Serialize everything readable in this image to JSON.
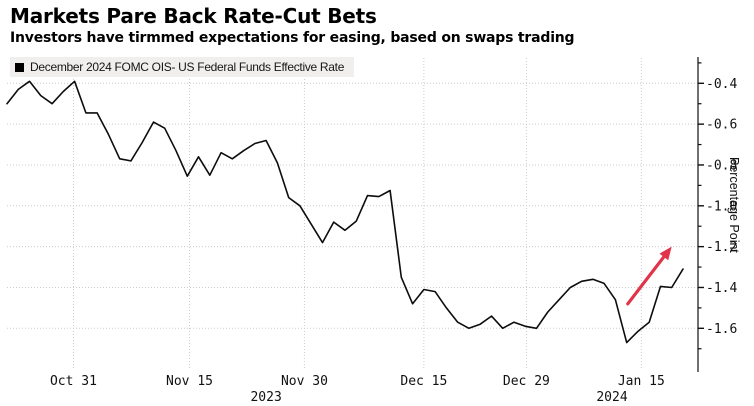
{
  "header": {
    "title": "Markets Pare Back Rate-Cut Bets",
    "subtitle": "Investors have tirmmed expectations for easing, based on swaps trading"
  },
  "legend": {
    "label": "December 2024 FOMC OIS- US Federal Funds Effective Rate",
    "swatch_color": "#000000"
  },
  "colors": {
    "line": "#0d0d0d",
    "grid": "#cccccc",
    "axis": "#111111",
    "tick_text": "#111111",
    "arrow": "#e13349",
    "legend_bg": "#f0efed"
  },
  "chart_data": {
    "type": "line",
    "title": "Markets Pare Back Rate-Cut Bets",
    "subtitle": "Investors have tirmmed expectations for easing, based on swaps trading",
    "grid": true,
    "legend_position": "top-left",
    "series": [
      {
        "name": "December 2024 FOMC OIS- US Federal Funds Effective Rate",
        "color": "#0d0d0d",
        "points": [
          [
            "2023-10-23",
            -0.5
          ],
          [
            "2023-10-24",
            -0.43
          ],
          [
            "2023-10-25",
            -0.39
          ],
          [
            "2023-10-26",
            -0.46
          ],
          [
            "2023-10-27",
            -0.5
          ],
          [
            "2023-10-30",
            -0.44
          ],
          [
            "2023-10-31",
            -0.39
          ],
          [
            "2023-11-01",
            -0.545
          ],
          [
            "2023-11-02",
            -0.545
          ],
          [
            "2023-11-03",
            -0.65
          ],
          [
            "2023-11-06",
            -0.77
          ],
          [
            "2023-11-07",
            -0.78
          ],
          [
            "2023-11-08",
            -0.69
          ],
          [
            "2023-11-09",
            -0.59
          ],
          [
            "2023-11-10",
            -0.62
          ],
          [
            "2023-11-13",
            -0.73
          ],
          [
            "2023-11-14",
            -0.855
          ],
          [
            "2023-11-15",
            -0.76
          ],
          [
            "2023-11-16",
            -0.85
          ],
          [
            "2023-11-17",
            -0.74
          ],
          [
            "2023-11-20",
            -0.77
          ],
          [
            "2023-11-21",
            -0.73
          ],
          [
            "2023-11-22",
            -0.695
          ],
          [
            "2023-11-24",
            -0.68
          ],
          [
            "2023-11-27",
            -0.79
          ],
          [
            "2023-11-28",
            -0.96
          ],
          [
            "2023-11-29",
            -1.0
          ],
          [
            "2023-11-30",
            -1.09
          ],
          [
            "2023-12-01",
            -1.18
          ],
          [
            "2023-12-04",
            -1.08
          ],
          [
            "2023-12-05",
            -1.12
          ],
          [
            "2023-12-06",
            -1.075
          ],
          [
            "2023-12-07",
            -0.95
          ],
          [
            "2023-12-08",
            -0.955
          ],
          [
            "2023-12-11",
            -0.925
          ],
          [
            "2023-12-12",
            -1.35
          ],
          [
            "2023-12-13",
            -1.48
          ],
          [
            "2023-12-14",
            -1.41
          ],
          [
            "2023-12-15",
            -1.42
          ],
          [
            "2023-12-18",
            -1.5
          ],
          [
            "2023-12-19",
            -1.57
          ],
          [
            "2023-12-20",
            -1.6
          ],
          [
            "2023-12-21",
            -1.58
          ],
          [
            "2023-12-22",
            -1.54
          ],
          [
            "2023-12-26",
            -1.6
          ],
          [
            "2023-12-27",
            -1.57
          ],
          [
            "2023-12-28",
            -1.59
          ],
          [
            "2023-12-29",
            -1.6
          ],
          [
            "2024-01-02",
            -1.52
          ],
          [
            "2024-01-03",
            -1.46
          ],
          [
            "2024-01-04",
            -1.4
          ],
          [
            "2024-01-05",
            -1.37
          ],
          [
            "2024-01-08",
            -1.36
          ],
          [
            "2024-01-09",
            -1.38
          ],
          [
            "2024-01-10",
            -1.46
          ],
          [
            "2024-01-11",
            -1.67
          ],
          [
            "2024-01-12",
            -1.615
          ],
          [
            "2024-01-15",
            -1.57
          ],
          [
            "2024-01-16",
            -1.395
          ],
          [
            "2024-01-17",
            -1.4
          ],
          [
            "2024-01-18",
            -1.31
          ]
        ]
      }
    ],
    "x_axis": {
      "ticks": [
        {
          "label": "Oct 31",
          "pos": 5.9
        },
        {
          "label": "Nov 15",
          "pos": 16.2
        },
        {
          "label": "Nov 30",
          "pos": 26.4
        },
        {
          "label": "Dec 15",
          "pos": 37.0
        },
        {
          "label": "Dec 29",
          "pos": 46.1
        },
        {
          "label": "Jan 15",
          "pos": 56.3
        }
      ],
      "year_labels": [
        {
          "label": "2023",
          "pos": 23.0
        },
        {
          "label": "2024",
          "pos": 53.7
        }
      ]
    },
    "y_axis": {
      "label": "Percentage Point",
      "side": "right",
      "ticks": [
        {
          "value": -0.4,
          "label": "-0.4"
        },
        {
          "value": -0.6,
          "label": "-0.6"
        },
        {
          "value": -0.8,
          "label": "-0.8"
        },
        {
          "value": -1.0,
          "label": "-1.0"
        },
        {
          "value": -1.2,
          "label": "-1.2"
        },
        {
          "value": -1.4,
          "label": "-1.4"
        },
        {
          "value": -1.6,
          "label": "-1.6"
        }
      ],
      "minor_ticks": [
        -0.3,
        -0.5,
        -0.7,
        -0.9,
        -1.1,
        -1.3,
        -1.5,
        -1.7
      ],
      "range": [
        -0.27,
        -1.79
      ]
    },
    "annotations": [
      {
        "type": "arrow",
        "color": "#e13349",
        "from": {
          "pos": 55.1,
          "value": -1.48
        },
        "to": {
          "pos": 59.0,
          "value": -1.2
        }
      }
    ]
  }
}
